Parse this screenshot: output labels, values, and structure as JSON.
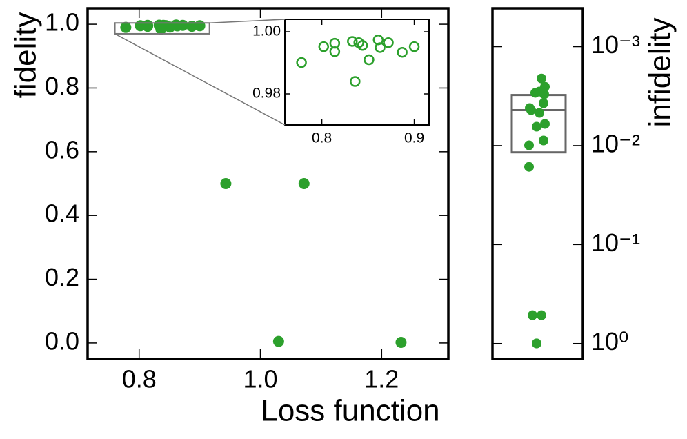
{
  "chart_data": [
    {
      "type": "scatter",
      "xlabel": "Loss function",
      "ylabel": "fidelity",
      "x": [
        0.778,
        0.802,
        0.814,
        0.814,
        0.833,
        0.836,
        0.84,
        0.844,
        0.851,
        0.861,
        0.863,
        0.872,
        0.887,
        0.9,
        0.943,
        1.072,
        1.03,
        1.232
      ],
      "values": [
        0.9901,
        0.9952,
        0.9963,
        0.9936,
        0.9969,
        0.984,
        0.9965,
        0.9956,
        0.991,
        0.9974,
        0.9949,
        0.9965,
        0.9934,
        0.9952,
        0.5,
        0.5,
        0.005,
        0.002
      ],
      "color": "#2ca02c",
      "marker": "filled",
      "xlim": [
        0.715,
        1.31
      ],
      "ylim": [
        -0.05,
        1.05
      ],
      "xticks": [
        0.8,
        {
          "value": 1.0,
          "label": "1.0"
        },
        1.2
      ],
      "yticks": [
        {
          "value": 0,
          "label": "0.0"
        },
        0.2,
        0.4,
        0.6,
        0.8,
        {
          "value": 1.0,
          "label": "1.0"
        }
      ]
    },
    {
      "type": "scatter",
      "inset": true,
      "x": [
        0.778,
        0.802,
        0.814,
        0.814,
        0.833,
        0.836,
        0.84,
        0.844,
        0.851,
        0.861,
        0.863,
        0.872,
        0.887,
        0.9
      ],
      "values": [
        0.9901,
        0.9952,
        0.9963,
        0.9936,
        0.9969,
        0.984,
        0.9965,
        0.9956,
        0.991,
        0.9974,
        0.9949,
        0.9965,
        0.9934,
        0.9952
      ],
      "color": "#2ca02c",
      "marker": "hollow",
      "xlim": [
        0.76,
        0.916
      ],
      "ylim": [
        0.97,
        1.004
      ],
      "xticks": [
        0.8,
        0.9
      ],
      "yticks": [
        0.98,
        {
          "value": 1.0,
          "label": "1.00"
        }
      ]
    },
    {
      "type": "box",
      "ylabel": "infidelity",
      "log": true,
      "y_inverted": true,
      "y_side": "right",
      "values": [
        0.0021,
        0.00254,
        0.00293,
        0.00284,
        0.00303,
        0.00373,
        0.00417,
        0.00438,
        0.00467,
        0.00604,
        0.00644,
        0.00888,
        0.00993,
        0.0164,
        0.517,
        0.517,
        0.998,
        0.995
      ],
      "box": {
        "q1": 0.00308,
        "median": 0.00438,
        "q3": 0.0117
      },
      "color": "#2ca02c",
      "box_color": "#666666",
      "ylim": [
        0.00041,
        1.43
      ],
      "yticks": [
        {
          "value": 0.001,
          "label": "10⁻³"
        },
        {
          "value": 0.01,
          "label": "10⁻²"
        },
        {
          "value": 0.1,
          "label": "10⁻¹"
        },
        {
          "value": 1,
          "label": "10⁰"
        }
      ]
    }
  ]
}
